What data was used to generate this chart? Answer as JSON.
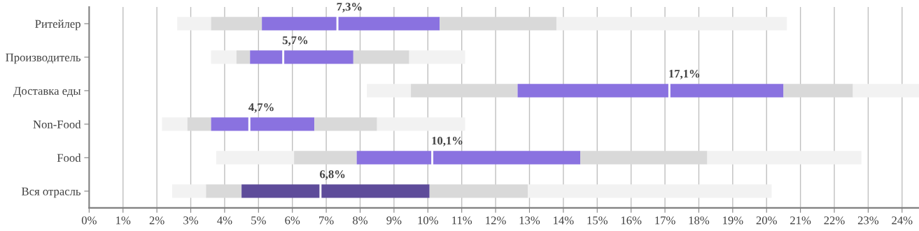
{
  "chart_data": {
    "type": "bar",
    "orientation": "horizontal",
    "categories": [
      "Ритейлер",
      "Производитель",
      "Доставка еды",
      "Non-Food",
      "Food",
      "Вся отрасль"
    ],
    "series": [
      {
        "colors": [
          "#f2f2f2",
          "#f2f2f2",
          "#f2f2f2",
          "#f2f2f2",
          "#f2f2f2",
          "#f2f2f2"
        ],
        "base": [
          2.6,
          3.6,
          8.2,
          2.15,
          3.75,
          2.45
        ],
        "values": [
          1.0,
          0.75,
          1.3,
          0.75,
          2.3,
          1.0
        ]
      },
      {
        "colors": [
          "#d9d9d9",
          "#d9d9d9",
          "#d9d9d9",
          "#d9d9d9",
          "#d9d9d9",
          "#d9d9d9"
        ],
        "base": [
          3.6,
          4.35,
          9.5,
          2.9,
          6.05,
          3.45
        ],
        "values": [
          1.5,
          0.4,
          3.15,
          0.7,
          1.85,
          1.05
        ]
      },
      {
        "colors": [
          "#8a72e0",
          "#8a72e0",
          "#8a72e0",
          "#8a72e0",
          "#8a72e0",
          "#5e4c9a"
        ],
        "base": [
          5.1,
          4.75,
          12.65,
          3.6,
          7.9,
          4.5
        ],
        "values": [
          2.2,
          0.95,
          4.45,
          1.1,
          2.2,
          2.3
        ]
      },
      {
        "colors": [
          "#8a72e0",
          "#8a72e0",
          "#8a72e0",
          "#8a72e0",
          "#8a72e0",
          "#5e4c9a"
        ],
        "base": [
          7.3,
          5.7,
          17.1,
          4.7,
          10.1,
          6.8
        ],
        "values": [
          3.05,
          2.1,
          3.4,
          1.95,
          4.4,
          3.25
        ]
      },
      {
        "colors": [
          "#d9d9d9",
          "#d9d9d9",
          "#d9d9d9",
          "#d9d9d9",
          "#d9d9d9",
          "#d9d9d9"
        ],
        "base": [
          10.35,
          7.8,
          20.5,
          6.65,
          14.5,
          10.05
        ],
        "values": [
          3.45,
          1.65,
          2.05,
          1.85,
          3.75,
          2.9
        ]
      },
      {
        "colors": [
          "#f2f2f2",
          "#f2f2f2",
          "#f2f2f2",
          "#f2f2f2",
          "#f2f2f2",
          "#f2f2f2"
        ],
        "base": [
          13.8,
          9.45,
          22.55,
          8.5,
          18.25,
          12.95
        ],
        "values": [
          6.8,
          1.65,
          1.95,
          2.6,
          4.55,
          7.2
        ]
      }
    ],
    "xlim": [
      0,
      24.5
    ],
    "xticks": [
      {
        "value": 0,
        "label": "0%"
      },
      {
        "value": 1,
        "label": "1%"
      },
      {
        "value": 2,
        "label": "2%"
      },
      {
        "value": 3,
        "label": "3%"
      },
      {
        "value": 4,
        "label": "4%"
      },
      {
        "value": 5,
        "label": "5%"
      },
      {
        "value": 6,
        "label": "6%"
      },
      {
        "value": 7,
        "label": "7%"
      },
      {
        "value": 8,
        "label": "8%"
      },
      {
        "value": 9,
        "label": "9%"
      },
      {
        "value": 10,
        "label": "10%"
      },
      {
        "value": 11,
        "label": "11%"
      },
      {
        "value": 12,
        "label": "12%"
      },
      {
        "value": 13,
        "label": "13%"
      },
      {
        "value": 14,
        "label": "14%"
      },
      {
        "value": 15,
        "label": "15%"
      },
      {
        "value": 16,
        "label": "16%"
      },
      {
        "value": 17,
        "label": "17%"
      },
      {
        "value": 18,
        "label": "18%"
      },
      {
        "value": 19,
        "label": "19%"
      },
      {
        "value": 20,
        "label": "20%"
      },
      {
        "value": 21,
        "label": "21%"
      },
      {
        "value": 22,
        "label": "22%"
      },
      {
        "value": 23,
        "label": "23%"
      },
      {
        "value": 24,
        "label": "24%"
      }
    ],
    "grid": "x",
    "annotations": [
      "7,3%",
      "5,7%",
      "17,1%",
      "4,7%",
      "10,1%",
      "6,8%"
    ]
  }
}
